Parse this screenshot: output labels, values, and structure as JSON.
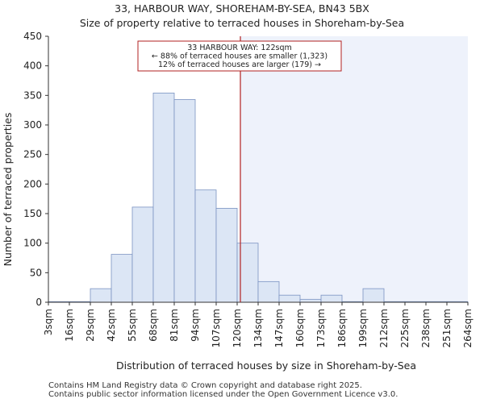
{
  "chart_data": {
    "type": "bar",
    "title": "33, HARBOUR WAY, SHOREHAM-BY-SEA, BN43 5BX",
    "subtitle": "Size of property relative to terraced houses in Shoreham-by-Sea",
    "xlabel": "Distribution of terraced houses by size in Shoreham-by-Sea",
    "ylabel": "Number of terraced properties",
    "ylim": [
      0,
      450
    ],
    "yticks": [
      0,
      50,
      100,
      150,
      200,
      250,
      300,
      350,
      400,
      450
    ],
    "bin_labels": [
      "3sqm",
      "16sqm",
      "29sqm",
      "42sqm",
      "55sqm",
      "68sqm",
      "81sqm",
      "94sqm",
      "107sqm",
      "120sqm",
      "134sqm",
      "147sqm",
      "160sqm",
      "173sqm",
      "186sqm",
      "199sqm",
      "212sqm",
      "225sqm",
      "238sqm",
      "251sqm",
      "264sqm"
    ],
    "values": [
      1,
      1,
      23,
      81,
      161,
      354,
      343,
      190,
      159,
      100,
      35,
      12,
      5,
      12,
      1,
      23,
      1,
      1,
      1,
      1
    ],
    "marker": {
      "value_sqm": 122,
      "color": "#b22222",
      "annotation": [
        "33 HARBOUR WAY: 122sqm",
        "← 88% of terraced houses are smaller (1,323)",
        "12% of terraced houses are larger (179) →"
      ]
    },
    "colors": {
      "bar_fill": "#dce6f5",
      "bar_stroke": "#7b93c2",
      "highlight_region": "#eef2fb",
      "axis": "#333333"
    }
  },
  "footer": {
    "line1": "Contains HM Land Registry data © Crown copyright and database right 2025.",
    "line2": "Contains public sector information licensed under the Open Government Licence v3.0."
  }
}
